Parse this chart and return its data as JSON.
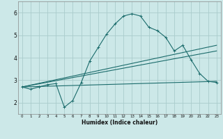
{
  "title": "",
  "xlabel": "Humidex (Indice chaleur)",
  "background_color": "#cce8e8",
  "grid_color": "#aacccc",
  "line_color": "#1a6b6b",
  "xlim": [
    -0.5,
    23.5
  ],
  "ylim": [
    1.5,
    6.5
  ],
  "yticks": [
    2,
    3,
    4,
    5,
    6
  ],
  "xticks": [
    0,
    1,
    2,
    3,
    4,
    5,
    6,
    7,
    8,
    9,
    10,
    11,
    12,
    13,
    14,
    15,
    16,
    17,
    18,
    19,
    20,
    21,
    22,
    23
  ],
  "series1_x": [
    0,
    1,
    2,
    3,
    4,
    5,
    6,
    7,
    8,
    9,
    10,
    11,
    12,
    13,
    14,
    15,
    16,
    17,
    18,
    19,
    20,
    21,
    22,
    23
  ],
  "series1_y": [
    2.7,
    2.6,
    2.7,
    2.8,
    2.85,
    1.8,
    2.1,
    2.9,
    3.85,
    4.45,
    5.05,
    5.5,
    5.85,
    5.95,
    5.85,
    5.35,
    5.2,
    4.9,
    4.3,
    4.55,
    3.9,
    3.3,
    2.95,
    2.9
  ],
  "series2_x": [
    0,
    23
  ],
  "series2_y": [
    2.7,
    2.95
  ],
  "series3_x": [
    0,
    23
  ],
  "series3_y": [
    2.7,
    4.55
  ],
  "series4_x": [
    0,
    23
  ],
  "series4_y": [
    2.7,
    4.3
  ]
}
